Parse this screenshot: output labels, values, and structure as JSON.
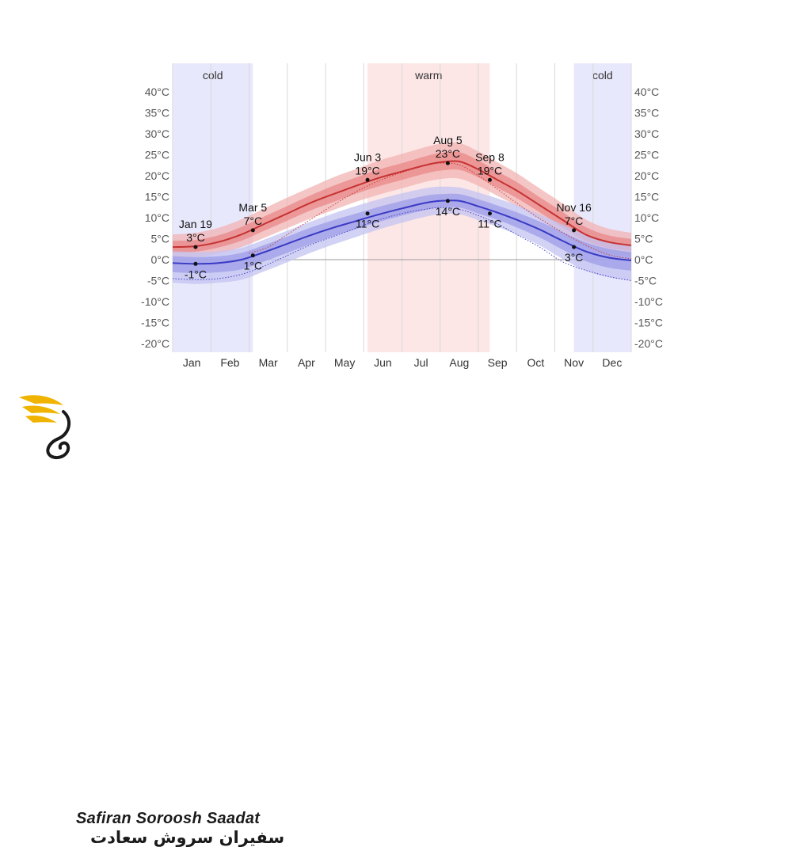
{
  "chart_data": {
    "type": "line",
    "yticks": [
      "40°C",
      "35°C",
      "30°C",
      "25°C",
      "20°C",
      "15°C",
      "10°C",
      "5°C",
      "0°C",
      "-5°C",
      "-10°C",
      "-15°C",
      "-20°C"
    ],
    "ytick_values": [
      40,
      35,
      30,
      25,
      20,
      15,
      10,
      5,
      0,
      -5,
      -10,
      -15,
      -20
    ],
    "ylim": [
      -22,
      42
    ],
    "xlim": [
      0,
      12
    ],
    "months": [
      "Jan",
      "Feb",
      "Mar",
      "Apr",
      "May",
      "Jun",
      "Jul",
      "Aug",
      "Sep",
      "Oct",
      "Nov",
      "Dec"
    ],
    "bands": [
      {
        "label": "cold",
        "type": "cold",
        "start": 0,
        "end": 2.1
      },
      {
        "label": "warm",
        "type": "warm",
        "start": 5.1,
        "end": 8.3
      },
      {
        "label": "cold",
        "type": "cold",
        "start": 10.5,
        "end": 12
      }
    ],
    "series": [
      {
        "role": "high",
        "x": [
          0,
          0.6,
          1.2,
          1.8,
          2.4,
          3.0,
          3.6,
          4.2,
          4.8,
          5.4,
          6.0,
          6.6,
          7.0,
          7.5,
          8.0,
          8.5,
          9.0,
          9.6,
          10.2,
          10.8,
          11.4,
          12.0
        ],
        "values": [
          3.0,
          3.2,
          4.2,
          6.0,
          8.5,
          11.0,
          13.5,
          15.6,
          17.6,
          19.5,
          21.0,
          22.5,
          23.2,
          23.4,
          21.5,
          19.0,
          16.5,
          13.0,
          9.5,
          6.0,
          4.2,
          3.4
        ],
        "p10_p90": [
          [
            0.5,
            6.0
          ],
          [
            0.6,
            6.4
          ],
          [
            1.5,
            7.6
          ],
          [
            3.0,
            9.6
          ],
          [
            5.2,
            12.2
          ],
          [
            7.5,
            14.8
          ],
          [
            9.8,
            17.2
          ],
          [
            11.8,
            19.6
          ],
          [
            13.8,
            21.6
          ],
          [
            15.5,
            23.6
          ],
          [
            17.0,
            25.2
          ],
          [
            18.5,
            26.8
          ],
          [
            19.2,
            27.6
          ],
          [
            19.3,
            27.8
          ],
          [
            17.6,
            25.8
          ],
          [
            15.2,
            23.2
          ],
          [
            12.8,
            20.6
          ],
          [
            9.6,
            17.0
          ],
          [
            6.2,
            13.4
          ],
          [
            3.0,
            9.6
          ],
          [
            1.4,
            7.4
          ],
          [
            0.8,
            6.4
          ]
        ],
        "p25_p75": [
          [
            1.7,
            4.5
          ],
          [
            1.9,
            4.7
          ],
          [
            2.9,
            5.8
          ],
          [
            4.5,
            7.8
          ],
          [
            6.9,
            10.3
          ],
          [
            9.3,
            12.8
          ],
          [
            11.7,
            15.3
          ],
          [
            13.7,
            17.6
          ],
          [
            15.7,
            19.6
          ],
          [
            17.5,
            21.5
          ],
          [
            19.0,
            23.0
          ],
          [
            20.5,
            24.6
          ],
          [
            21.2,
            25.4
          ],
          [
            21.4,
            25.6
          ],
          [
            19.6,
            23.6
          ],
          [
            17.1,
            21.0
          ],
          [
            14.7,
            18.5
          ],
          [
            11.3,
            14.9
          ],
          [
            7.8,
            11.4
          ],
          [
            4.5,
            7.8
          ],
          [
            2.8,
            5.8
          ],
          [
            2.1,
            4.9
          ]
        ],
        "dotted_x": [
          2.0,
          2.5,
          3.0,
          3.6,
          4.2,
          4.8,
          5.4,
          6.0,
          6.6,
          7.0,
          7.5,
          8.0,
          8.5,
          9.0,
          9.6,
          10.2,
          10.8,
          11.4,
          12.0
        ],
        "dotted": [
          1.5,
          3.0,
          6.0,
          9.5,
          13.0,
          16.2,
          18.8,
          20.8,
          22.4,
          23.0,
          22.6,
          20.0,
          16.8,
          13.5,
          9.8,
          6.5,
          3.5,
          1.2,
          0.2
        ]
      },
      {
        "role": "low",
        "x": [
          0,
          0.6,
          1.2,
          1.8,
          2.4,
          3.0,
          3.6,
          4.2,
          4.8,
          5.4,
          6.0,
          6.6,
          7.0,
          7.5,
          8.0,
          8.5,
          9.0,
          9.6,
          10.2,
          10.8,
          11.4,
          12.0
        ],
        "values": [
          -0.8,
          -1.0,
          -0.8,
          0.0,
          1.8,
          3.8,
          5.8,
          7.6,
          9.2,
          10.8,
          12.2,
          13.5,
          14.0,
          14.0,
          12.7,
          11.2,
          9.5,
          7.2,
          4.5,
          2.0,
          0.5,
          -0.2
        ],
        "p10_p90": [
          [
            -5.5,
            2.0
          ],
          [
            -5.8,
            1.8
          ],
          [
            -5.5,
            2.0
          ],
          [
            -4.8,
            2.8
          ],
          [
            -2.8,
            4.8
          ],
          [
            -0.6,
            6.9
          ],
          [
            1.6,
            9.0
          ],
          [
            3.6,
            11.0
          ],
          [
            5.4,
            12.8
          ],
          [
            7.2,
            14.4
          ],
          [
            8.8,
            15.8
          ],
          [
            10.2,
            17.0
          ],
          [
            10.8,
            17.4
          ],
          [
            10.8,
            17.2
          ],
          [
            9.4,
            16.0
          ],
          [
            7.8,
            14.6
          ],
          [
            6.0,
            13.0
          ],
          [
            3.4,
            10.8
          ],
          [
            0.2,
            8.4
          ],
          [
            -2.6,
            6.0
          ],
          [
            -4.2,
            4.4
          ],
          [
            -5.0,
            3.4
          ]
        ],
        "p25_p75": [
          [
            -3.0,
            0.8
          ],
          [
            -3.2,
            0.6
          ],
          [
            -3.0,
            0.8
          ],
          [
            -2.3,
            1.6
          ],
          [
            -0.4,
            3.5
          ],
          [
            1.6,
            5.5
          ],
          [
            3.7,
            7.6
          ],
          [
            5.6,
            9.4
          ],
          [
            7.3,
            11.0
          ],
          [
            9.0,
            12.6
          ],
          [
            10.5,
            14.0
          ],
          [
            11.8,
            15.2
          ],
          [
            12.4,
            15.6
          ],
          [
            12.4,
            15.6
          ],
          [
            11.0,
            14.4
          ],
          [
            9.5,
            12.9
          ],
          [
            7.7,
            11.3
          ],
          [
            5.3,
            9.1
          ],
          [
            2.4,
            6.6
          ],
          [
            -0.3,
            4.1
          ],
          [
            -1.9,
            2.6
          ],
          [
            -2.6,
            1.8
          ]
        ],
        "dotted_x": [
          0,
          0.6,
          1.2,
          1.8,
          2.4,
          3.0,
          3.6,
          4.2,
          4.8,
          5.4,
          6.0,
          6.6,
          7.0,
          7.5,
          8.0,
          8.5,
          9.0,
          9.6,
          10.2,
          10.8,
          11.4,
          12.0
        ],
        "dotted": [
          -4.5,
          -4.8,
          -4.5,
          -3.5,
          -1.5,
          1.0,
          3.5,
          5.5,
          7.5,
          9.5,
          11.0,
          12.0,
          12.4,
          12.0,
          10.5,
          8.5,
          6.0,
          3.0,
          -0.5,
          -2.5,
          -4.0,
          -5.0
        ]
      }
    ],
    "annotations": [
      {
        "x": 0.6,
        "y": 3.0,
        "date": "Jan 19",
        "temp": "3°C",
        "series": "high",
        "pos": "above"
      },
      {
        "x": 0.6,
        "y": -1.0,
        "date": "",
        "temp": "-1°C",
        "series": "low",
        "pos": "below"
      },
      {
        "x": 2.1,
        "y": 7.0,
        "date": "Mar 5",
        "temp": "7°C",
        "series": "high",
        "pos": "above"
      },
      {
        "x": 2.1,
        "y": 1.0,
        "date": "",
        "temp": "1°C",
        "series": "low",
        "pos": "below"
      },
      {
        "x": 5.1,
        "y": 19.0,
        "date": "Jun 3",
        "temp": "19°C",
        "series": "high",
        "pos": "above"
      },
      {
        "x": 5.1,
        "y": 11.0,
        "date": "",
        "temp": "11°C",
        "series": "low",
        "pos": "below"
      },
      {
        "x": 7.2,
        "y": 23.0,
        "date": "Aug 5",
        "temp": "23°C",
        "series": "high",
        "pos": "above"
      },
      {
        "x": 7.2,
        "y": 14.0,
        "date": "",
        "temp": "14°C",
        "series": "low",
        "pos": "below"
      },
      {
        "x": 8.3,
        "y": 19.0,
        "date": "Sep 8",
        "temp": "19°C",
        "series": "high",
        "pos": "above"
      },
      {
        "x": 8.3,
        "y": 11.0,
        "date": "",
        "temp": "11°C",
        "series": "low",
        "pos": "below"
      },
      {
        "x": 10.5,
        "y": 7.0,
        "date": "Nov 16",
        "temp": "7°C",
        "series": "high",
        "pos": "above"
      },
      {
        "x": 10.5,
        "y": 3.0,
        "date": "",
        "temp": "3°C",
        "series": "low",
        "pos": "below"
      }
    ],
    "colors": {
      "high_line": "#c63232",
      "high_band_outer": "#f2b3b3",
      "high_band_inner": "#e88585",
      "low_line": "#3a3ac4",
      "low_band_outer": "#c3c3f2",
      "low_band_inner": "#9a9ae8",
      "cold_bg": "#e8e8fc",
      "warm_bg": "#fde6e6",
      "grid": "#d8d8d8"
    }
  },
  "logo": {
    "name_en": "Safiran Soroosh Saadat",
    "name_fa": "سفیران سروش سعادت"
  }
}
